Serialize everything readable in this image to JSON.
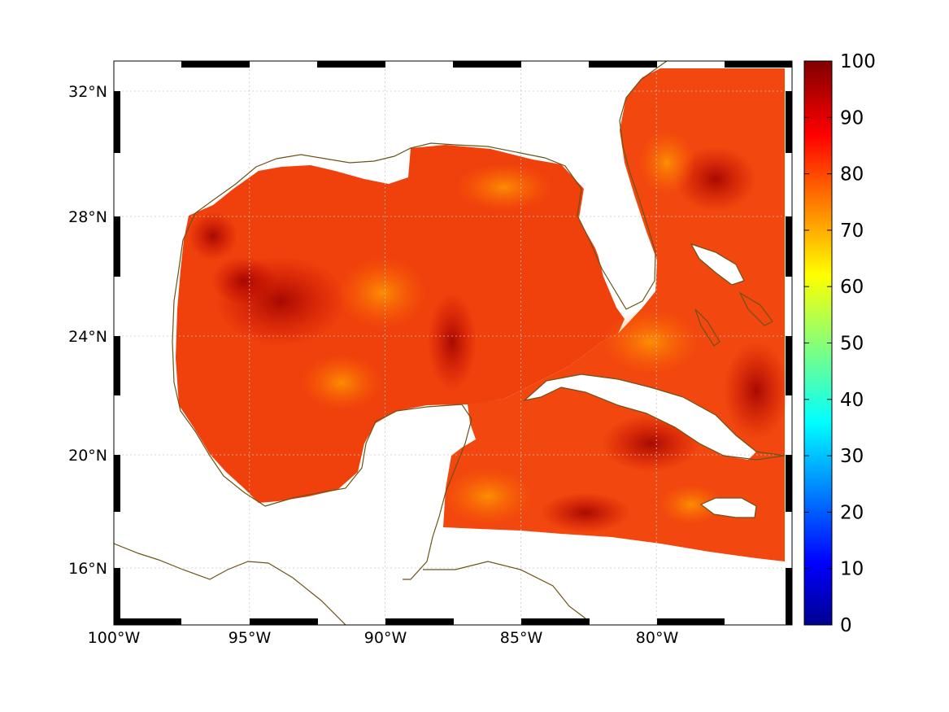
{
  "map": {
    "longitude_labels": [
      "100°W",
      "95°W",
      "90°W",
      "85°W",
      "80°W"
    ],
    "latitude_labels": [
      "16°N",
      "20°N",
      "24°N",
      "28°N",
      "32°N"
    ],
    "extent": {
      "lon_min": -100,
      "lon_max": -75,
      "lat_min": 14.3,
      "lat_max": 32.9
    },
    "grid": true,
    "coastline_color": "#6b5418",
    "colormap": "jet",
    "data_min": 0,
    "data_max": 100,
    "typical_values": "mostly 75-95 over ocean, land masked"
  },
  "colorbar": {
    "tick_labels": [
      "100",
      "90",
      "80",
      "70",
      "60",
      "50",
      "40",
      "30",
      "20",
      "10",
      "0"
    ],
    "tick_values": [
      100,
      90,
      80,
      70,
      60,
      50,
      40,
      30,
      20,
      10,
      0
    ]
  }
}
